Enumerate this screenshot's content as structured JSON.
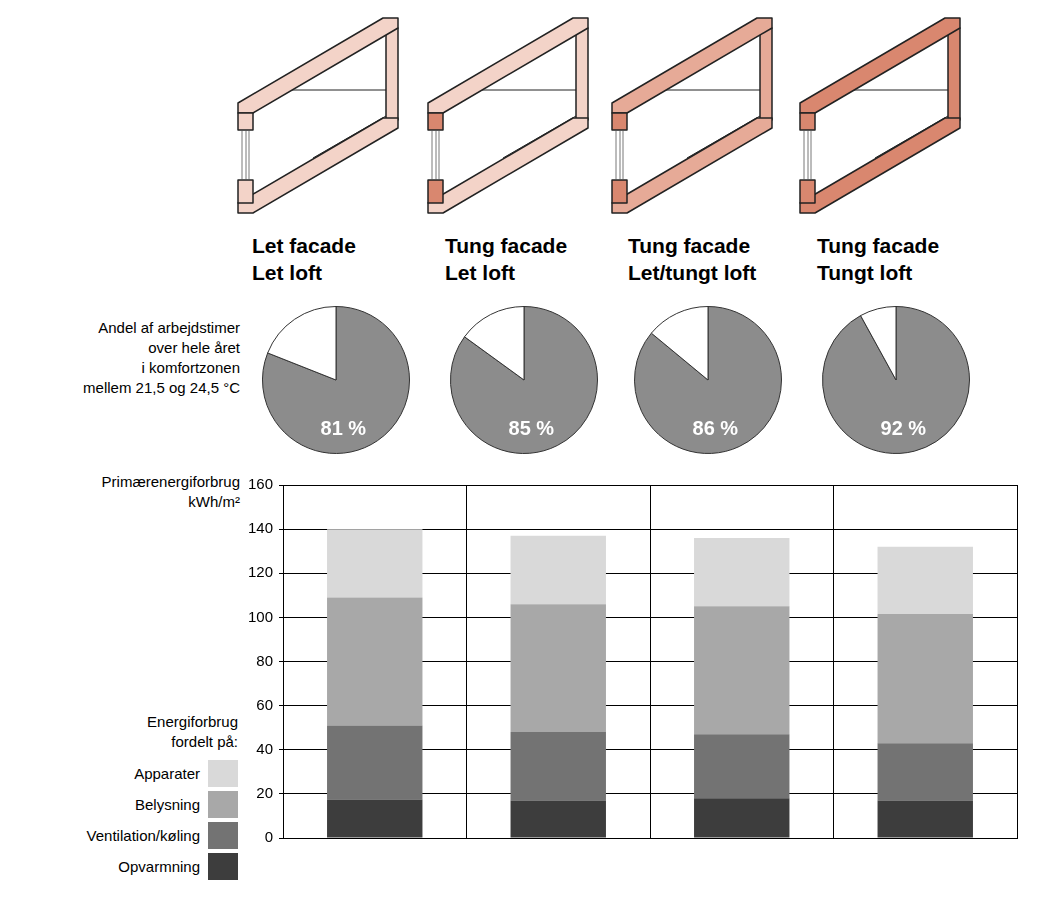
{
  "chart_data": [
    {
      "type": "pie",
      "title": "Andel af arbejdstimer\nover hele året\ni komfortzonen\nmellem 21,5 og 24,5 °C",
      "categories": [
        "Let facade\nLet loft",
        "Tung facade\nLet loft",
        "Tung facade\nLet/tungt loft",
        "Tung facade\nTungt loft"
      ],
      "values": [
        81,
        85,
        86,
        92
      ],
      "value_labels": [
        "81 %",
        "85 %",
        "86 %",
        "92 %"
      ],
      "color": "#8c8c8c",
      "data_labels": true
    },
    {
      "type": "bar",
      "y_label": "Primærenergiforbrug\nkWh/m²",
      "categories": [
        "Let facade\nLet loft",
        "Tung facade\nLet loft",
        "Tung facade\nLet/tungt loft",
        "Tung facade\nTungt loft"
      ],
      "series": [
        {
          "name": "Opvarmning",
          "color": "#3d3d3d",
          "values": [
            17.5,
            17,
            18,
            17
          ]
        },
        {
          "name": "Ventilation/køling",
          "color": "#737373",
          "values": [
            33.5,
            31,
            29,
            26
          ]
        },
        {
          "name": "Belysning",
          "color": "#a8a8a8",
          "values": [
            58,
            58,
            58,
            58.5
          ]
        },
        {
          "name": "Apparater",
          "color": "#d9d9d9",
          "values": [
            31,
            31,
            31,
            30.5
          ]
        }
      ],
      "stacked": true,
      "ylim": [
        0,
        160
      ],
      "yticks": [
        0,
        20,
        40,
        60,
        80,
        100,
        120,
        140,
        160
      ],
      "grid": true,
      "tick_labels": "y",
      "legend": "left",
      "annotations": [
        "Energiforbrug fordelt på:"
      ]
    }
  ]
}
